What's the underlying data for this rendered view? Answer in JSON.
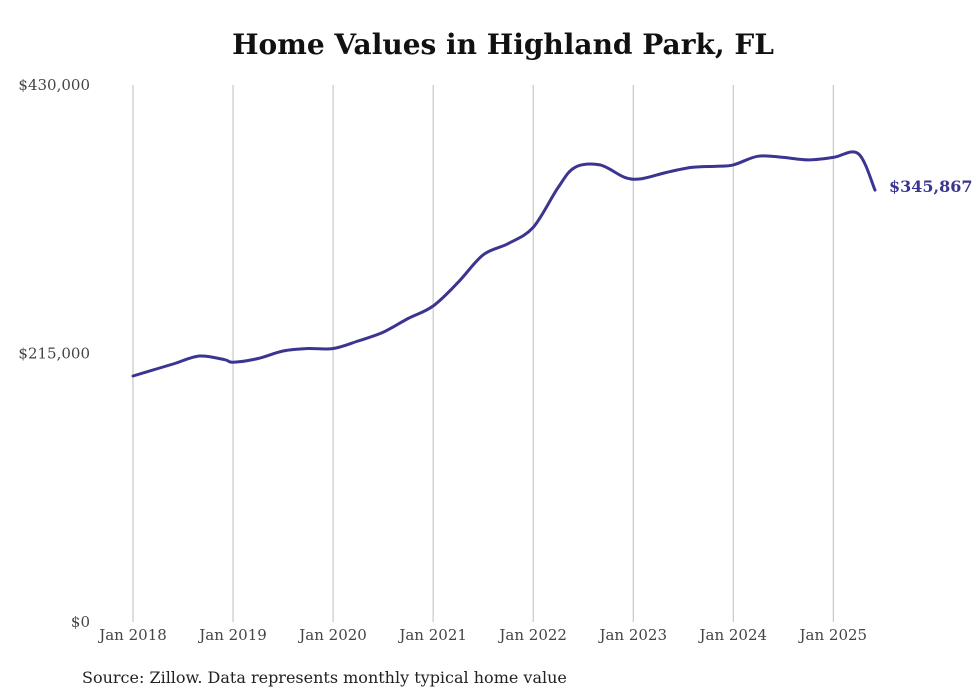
{
  "chart_data": {
    "type": "line",
    "title": "Home Values in Highland Park, FL",
    "source": "Source: Zillow. Data represents monthly typical home value",
    "y_ticks": [
      {
        "value": 430000,
        "label": "$430,000"
      },
      {
        "value": 215000,
        "label": "$215,000"
      },
      {
        "value": 0,
        "label": "$0"
      }
    ],
    "ylim": [
      0,
      430000
    ],
    "x_ticks": [
      {
        "date": "2018-01",
        "label": "Jan 2018"
      },
      {
        "date": "2019-01",
        "label": "Jan 2019"
      },
      {
        "date": "2020-01",
        "label": "Jan 2020"
      },
      {
        "date": "2021-01",
        "label": "Jan 2021"
      },
      {
        "date": "2022-01",
        "label": "Jan 2022"
      },
      {
        "date": "2023-01",
        "label": "Jan 2023"
      },
      {
        "date": "2024-01",
        "label": "Jan 2024"
      },
      {
        "date": "2025-01",
        "label": "Jan 2025"
      }
    ],
    "xlim": [
      "2018-01",
      "2025-06"
    ],
    "grid": "vertical",
    "line_color": "#3b3591",
    "end_label": "$345,867",
    "series": [
      {
        "x": [
          "2018-01",
          "2018-04",
          "2018-06",
          "2018-09",
          "2018-12",
          "2019-01",
          "2019-04",
          "2019-07",
          "2019-10",
          "2020-01",
          "2020-04",
          "2020-07",
          "2020-10",
          "2021-01",
          "2021-04",
          "2021-07",
          "2021-10",
          "2022-01",
          "2022-04",
          "2022-06",
          "2022-09",
          "2022-12",
          "2023-02",
          "2023-05",
          "2023-08",
          "2023-11",
          "2024-01",
          "2024-04",
          "2024-07",
          "2024-10",
          "2025-01",
          "2025-04",
          "2025-06"
        ],
        "y": [
          197000,
          203000,
          207000,
          213000,
          210000,
          208000,
          211000,
          217000,
          219000,
          219000,
          225000,
          232000,
          243000,
          253000,
          272000,
          294000,
          303000,
          316000,
          348000,
          364000,
          366000,
          356000,
          355000,
          360000,
          364000,
          365000,
          366000,
          373000,
          372000,
          370000,
          372000,
          375000,
          345867
        ]
      }
    ]
  }
}
